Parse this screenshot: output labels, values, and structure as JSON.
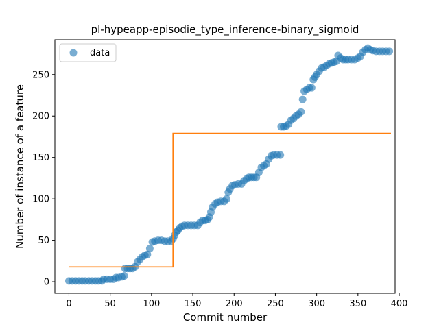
{
  "chart_data": {
    "type": "scatter",
    "title": "pl-hypeapp-episodie_type_inference-binary_sigmoid",
    "xlabel": "Commit number",
    "ylabel": "Number of instance of a feature",
    "xlim": [
      -17,
      395
    ],
    "ylim": [
      -14,
      292
    ],
    "xticks": [
      0,
      50,
      100,
      150,
      200,
      250,
      300,
      350,
      400
    ],
    "yticks": [
      0,
      50,
      100,
      150,
      200,
      250
    ],
    "grid": false,
    "legend": {
      "placement": "top-left",
      "entries": [
        "data"
      ]
    },
    "colors": {
      "data": "#1f77b4",
      "fit": "#ff7f0e"
    },
    "series": [
      {
        "name": "data",
        "kind": "scatter",
        "points": [
          [
            0,
            1
          ],
          [
            4,
            1
          ],
          [
            8,
            1
          ],
          [
            12,
            1
          ],
          [
            16,
            1
          ],
          [
            20,
            1
          ],
          [
            24,
            1
          ],
          [
            28,
            1
          ],
          [
            32,
            1
          ],
          [
            36,
            1
          ],
          [
            40,
            1
          ],
          [
            42,
            3
          ],
          [
            46,
            3
          ],
          [
            50,
            3
          ],
          [
            54,
            3
          ],
          [
            57,
            5
          ],
          [
            60,
            5
          ],
          [
            64,
            6
          ],
          [
            67,
            7
          ],
          [
            68,
            16
          ],
          [
            71,
            16
          ],
          [
            74,
            16
          ],
          [
            77,
            16
          ],
          [
            80,
            18
          ],
          [
            83,
            24
          ],
          [
            86,
            27
          ],
          [
            89,
            30
          ],
          [
            92,
            32
          ],
          [
            95,
            33
          ],
          [
            98,
            40
          ],
          [
            101,
            48
          ],
          [
            104,
            49
          ],
          [
            108,
            50
          ],
          [
            112,
            50
          ],
          [
            116,
            49
          ],
          [
            120,
            49
          ],
          [
            124,
            49
          ],
          [
            126,
            52
          ],
          [
            128,
            56
          ],
          [
            130,
            60
          ],
          [
            132,
            62
          ],
          [
            134,
            65
          ],
          [
            137,
            67
          ],
          [
            140,
            68
          ],
          [
            144,
            68
          ],
          [
            148,
            68
          ],
          [
            152,
            68
          ],
          [
            156,
            68
          ],
          [
            159,
            72
          ],
          [
            162,
            74
          ],
          [
            165,
            74
          ],
          [
            168,
            75
          ],
          [
            170,
            78
          ],
          [
            172,
            84
          ],
          [
            174,
            90
          ],
          [
            177,
            94
          ],
          [
            180,
            96
          ],
          [
            184,
            97
          ],
          [
            188,
            97
          ],
          [
            191,
            100
          ],
          [
            193,
            108
          ],
          [
            195,
            112
          ],
          [
            198,
            116
          ],
          [
            201,
            117
          ],
          [
            205,
            118
          ],
          [
            209,
            118
          ],
          [
            212,
            122
          ],
          [
            215,
            124
          ],
          [
            218,
            126
          ],
          [
            221,
            126
          ],
          [
            224,
            126
          ],
          [
            227,
            126
          ],
          [
            230,
            132
          ],
          [
            233,
            138
          ],
          [
            236,
            140
          ],
          [
            239,
            142
          ],
          [
            242,
            148
          ],
          [
            245,
            152
          ],
          [
            248,
            153
          ],
          [
            252,
            153
          ],
          [
            256,
            153
          ],
          [
            257,
            187
          ],
          [
            260,
            187
          ],
          [
            263,
            188
          ],
          [
            266,
            190
          ],
          [
            269,
            195
          ],
          [
            272,
            197
          ],
          [
            275,
            200
          ],
          [
            278,
            202
          ],
          [
            281,
            205
          ],
          [
            283,
            220
          ],
          [
            285,
            230
          ],
          [
            288,
            232
          ],
          [
            291,
            234
          ],
          [
            294,
            234
          ],
          [
            296,
            244
          ],
          [
            298,
            247
          ],
          [
            300,
            250
          ],
          [
            303,
            254
          ],
          [
            306,
            258
          ],
          [
            309,
            259
          ],
          [
            312,
            261
          ],
          [
            315,
            263
          ],
          [
            318,
            264
          ],
          [
            321,
            265
          ],
          [
            324,
            266
          ],
          [
            326,
            273
          ],
          [
            329,
            270
          ],
          [
            332,
            268
          ],
          [
            335,
            268
          ],
          [
            338,
            268
          ],
          [
            342,
            268
          ],
          [
            346,
            268
          ],
          [
            350,
            270
          ],
          [
            353,
            272
          ],
          [
            356,
            277
          ],
          [
            359,
            280
          ],
          [
            362,
            282
          ],
          [
            365,
            280
          ],
          [
            368,
            279
          ],
          [
            372,
            278
          ],
          [
            376,
            278
          ],
          [
            380,
            278
          ],
          [
            384,
            278
          ],
          [
            388,
            278
          ]
        ]
      },
      {
        "name": "",
        "kind": "step-line",
        "points": [
          [
            0,
            18
          ],
          [
            126,
            18
          ],
          [
            126,
            179
          ],
          [
            390,
            179
          ]
        ]
      }
    ]
  }
}
